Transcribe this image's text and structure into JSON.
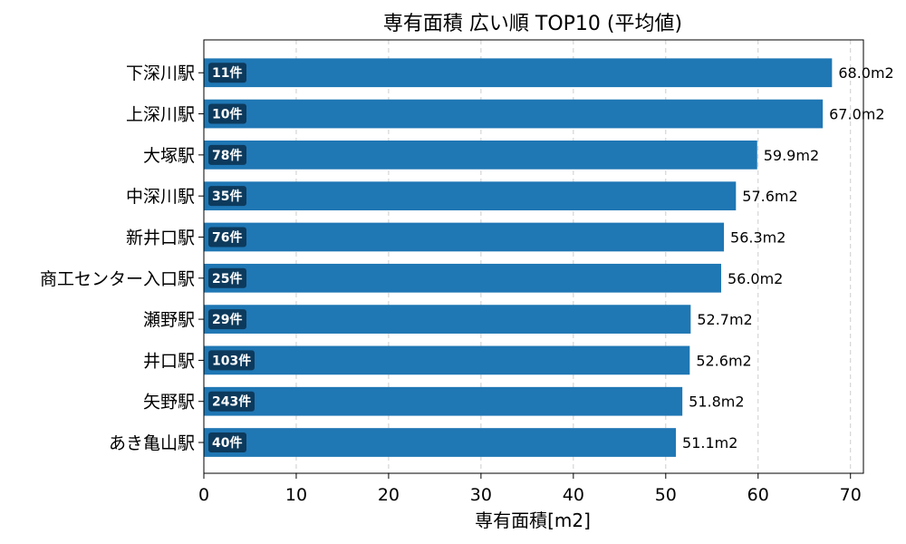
{
  "chart_data": {
    "type": "bar",
    "orientation": "horizontal",
    "title": "専有面積 広い順 TOP10 (平均値)",
    "xlabel": "専有面積[m2]",
    "ylabel": "",
    "xlim": [
      0,
      71.4
    ],
    "xticks": [
      0,
      10,
      20,
      30,
      40,
      50,
      60,
      70
    ],
    "grid": "x-dashed",
    "bar_color": "#1f77b4",
    "count_badge_color": "#0d3a5c",
    "categories": [
      "下深川駅",
      "上深川駅",
      "大塚駅",
      "中深川駅",
      "新井口駅",
      "商工センター入口駅",
      "瀬野駅",
      "井口駅",
      "矢野駅",
      "あき亀山駅"
    ],
    "values": [
      68.0,
      67.0,
      59.9,
      57.6,
      56.3,
      56.0,
      52.7,
      52.6,
      51.8,
      51.1
    ],
    "value_labels": [
      "68.0m2",
      "67.0m2",
      "59.9m2",
      "57.6m2",
      "56.3m2",
      "56.0m2",
      "52.7m2",
      "52.6m2",
      "51.8m2",
      "51.1m2"
    ],
    "counts": [
      "11件",
      "10件",
      "78件",
      "35件",
      "76件",
      "25件",
      "29件",
      "103件",
      "243件",
      "40件"
    ]
  }
}
